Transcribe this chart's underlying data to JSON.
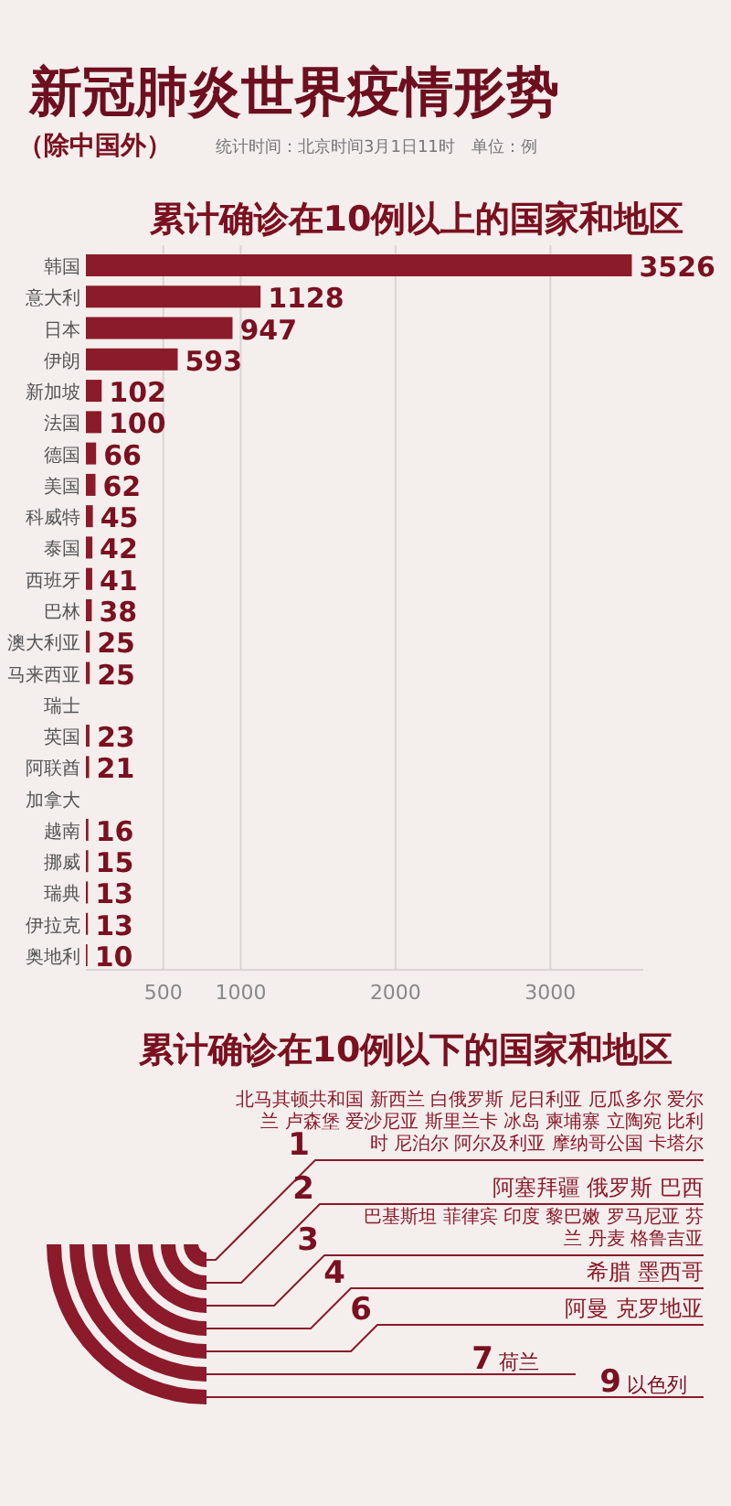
{
  "chart_data": [
    {
      "type": "bar",
      "orientation": "horizontal",
      "title": "新冠肺炎世界疫情形势",
      "subtitle": "累计确诊在10例以上的国家和地区",
      "annotations": [
        "（除中国外）",
        "统计时间：北京时间3月1日11时　单位：例"
      ],
      "categories": [
        "韩国",
        "意大利",
        "日本",
        "伊朗",
        "新加坡",
        "法国",
        "德国",
        "美国",
        "科威特",
        "泰国",
        "西班牙",
        "巴林",
        "澳大利亚",
        "马来西亚",
        "瑞士",
        "英国",
        "阿联酋",
        "加拿大",
        "越南",
        "挪威",
        "瑞典",
        "伊拉克",
        "奥地利"
      ],
      "values": [
        3526,
        1128,
        947,
        593,
        102,
        100,
        66,
        62,
        45,
        42,
        41,
        38,
        25,
        25,
        null,
        23,
        21,
        null,
        16,
        15,
        13,
        13,
        10
      ],
      "color": "#8b1a2b",
      "xlim": [
        0,
        3600
      ],
      "xticks": [
        500,
        1000,
        2000,
        3000
      ],
      "grid": "x",
      "data_labels": true
    },
    {
      "type": "other",
      "title": "累计确诊在10例以下的国家和地区",
      "categories": [
        "北马其顿共和国 新西兰 白俄罗斯 尼日利亚 厄瓜多尔 爱尔兰 卢森堡 爱沙尼亚 斯里兰卡 冰岛 柬埔寨 立陶宛 比利时 尼泊尔 阿尔及利亚 摩纳哥公国 卡塔尔",
        "阿塞拜疆 俄罗斯 巴西",
        "巴基斯坦 菲律宾 印度 黎巴嫩 罗马尼亚 芬兰 丹麦 格鲁吉亚",
        "希腊 墨西哥",
        "阿曼 克罗地亚",
        "荷兰",
        "以色列"
      ],
      "values": [
        1,
        2,
        3,
        4,
        6,
        7,
        9
      ],
      "color": "#8b1a2b",
      "data_labels": true
    }
  ]
}
